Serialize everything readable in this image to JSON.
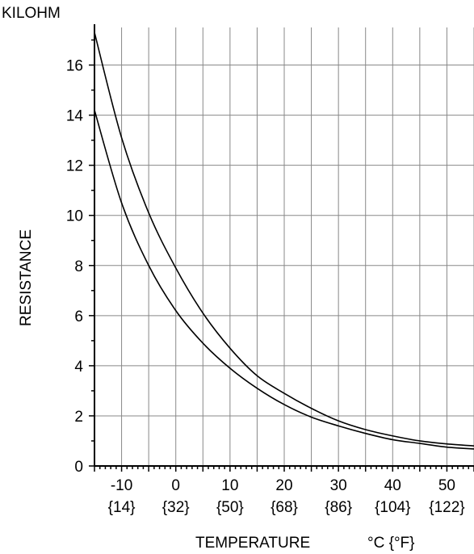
{
  "chart_data": {
    "type": "line",
    "y_unit_label": "KILOHM",
    "ylabel": "RESISTANCE",
    "xlabel": "TEMPERATURE",
    "x_unit_label": "°C {°F}",
    "xlim": [
      -15,
      55
    ],
    "ylim": [
      0,
      17.5
    ],
    "x_ticks": [
      {
        "c": -10,
        "label": "-10",
        "sub": "{14}"
      },
      {
        "c": 0,
        "label": "0",
        "sub": "{32}"
      },
      {
        "c": 10,
        "label": "10",
        "sub": "{50}"
      },
      {
        "c": 20,
        "label": "20",
        "sub": "{68}"
      },
      {
        "c": 30,
        "label": "30",
        "sub": "{86}"
      },
      {
        "c": 40,
        "label": "40",
        "sub": "{104}"
      },
      {
        "c": 50,
        "label": "50",
        "sub": "{122}"
      }
    ],
    "y_ticks": [
      {
        "v": 0,
        "label": "0"
      },
      {
        "v": 2,
        "label": "2"
      },
      {
        "v": 4,
        "label": "4"
      },
      {
        "v": 6,
        "label": "6"
      },
      {
        "v": 8,
        "label": "8"
      },
      {
        "v": 10,
        "label": "10"
      },
      {
        "v": 12,
        "label": "12"
      },
      {
        "v": 14,
        "label": "14"
      },
      {
        "v": 16,
        "label": "16"
      }
    ],
    "grid": true,
    "series": [
      {
        "x": [
          -15,
          -10,
          -5,
          0,
          5,
          10,
          15,
          20,
          25,
          30,
          35,
          40,
          45,
          50,
          55
        ],
        "y": [
          17.3,
          13.1,
          10.1,
          7.9,
          6.1,
          4.7,
          3.6,
          2.9,
          2.3,
          1.8,
          1.45,
          1.2,
          1.0,
          0.88,
          0.8
        ]
      },
      {
        "x": [
          -15,
          -10,
          -5,
          0,
          5,
          10,
          15,
          20,
          25,
          30,
          35,
          40,
          45,
          50,
          55
        ],
        "y": [
          14.2,
          10.5,
          8.0,
          6.2,
          4.9,
          3.9,
          3.1,
          2.45,
          1.95,
          1.6,
          1.3,
          1.05,
          0.9,
          0.75,
          0.68
        ]
      }
    ],
    "line_color": "#000000",
    "grid_color": "#888888"
  }
}
